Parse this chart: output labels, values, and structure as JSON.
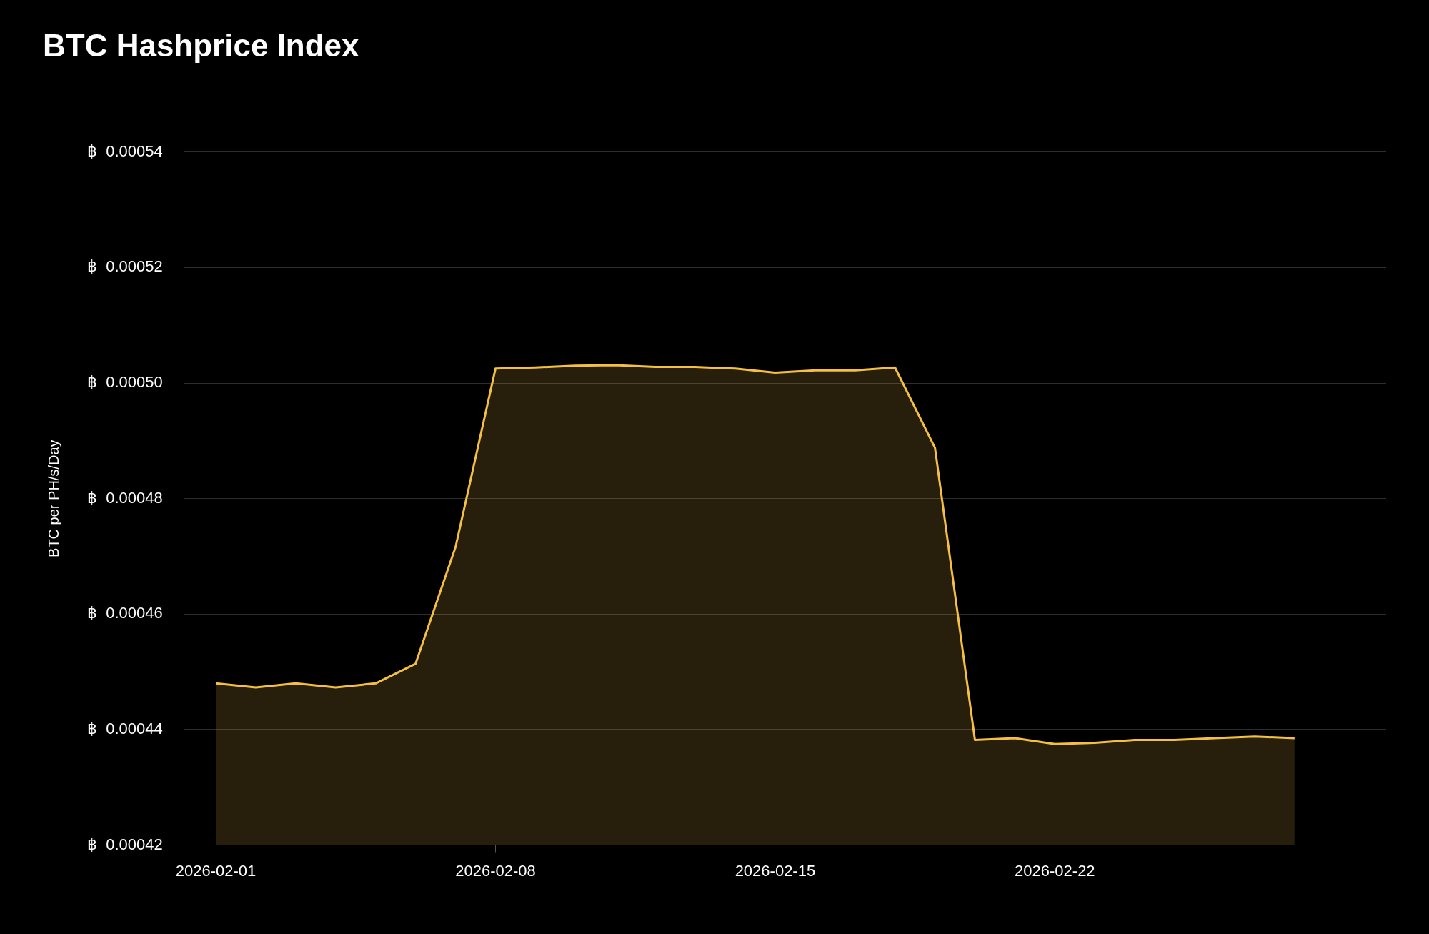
{
  "chart_data": {
    "type": "area",
    "title": "BTC Hashprice Index",
    "ylabel": "BTC per PH/s/Day",
    "x": [
      "2026-02-01",
      "2026-02-02",
      "2026-02-03",
      "2026-02-04",
      "2026-02-05",
      "2026-02-06",
      "2026-02-07",
      "2026-02-08",
      "2026-02-09",
      "2026-02-10",
      "2026-02-11",
      "2026-02-12",
      "2026-02-13",
      "2026-02-14",
      "2026-02-15",
      "2026-02-16",
      "2026-02-17",
      "2026-02-18",
      "2026-02-19",
      "2026-02-20",
      "2026-02-21",
      "2026-02-22",
      "2026-02-23",
      "2026-02-24",
      "2026-02-25",
      "2026-02-26",
      "2026-02-27",
      "2026-02-28"
    ],
    "series": [
      {
        "color": "#f5c042",
        "values": [
          0.000448,
          0.0004473,
          0.000448,
          0.0004473,
          0.000448,
          0.0004514,
          0.0004716,
          0.0005025,
          0.0005027,
          0.000503,
          0.0005031,
          0.0005028,
          0.0005028,
          0.0005025,
          0.0005018,
          0.0005022,
          0.0005022,
          0.0005027,
          0.0004888,
          0.0004382,
          0.0004385,
          0.0004375,
          0.0004377,
          0.0004382,
          0.0004382,
          0.0004385,
          0.0004388,
          0.0004385
        ]
      }
    ],
    "xlim": [
      "2026-01-31T05:00",
      "2026-03-02T07:00"
    ],
    "xticks": [
      "2026-02-01",
      "2026-02-08",
      "2026-02-15",
      "2026-02-22"
    ],
    "ylim": [
      0.00042,
      0.00054
    ],
    "yticks": [
      {
        "value": 0.00042,
        "label": "฿  0.00042"
      },
      {
        "value": 0.00044,
        "label": "฿  0.00044"
      },
      {
        "value": 0.00046,
        "label": "฿  0.00046"
      },
      {
        "value": 0.00048,
        "label": "฿  0.00048"
      },
      {
        "value": 0.0005,
        "label": "฿  0.00050"
      },
      {
        "value": 0.00052,
        "label": "฿  0.00052"
      },
      {
        "value": 0.00054,
        "label": "฿  0.00054"
      }
    ],
    "grid": "y",
    "legend": false
  }
}
